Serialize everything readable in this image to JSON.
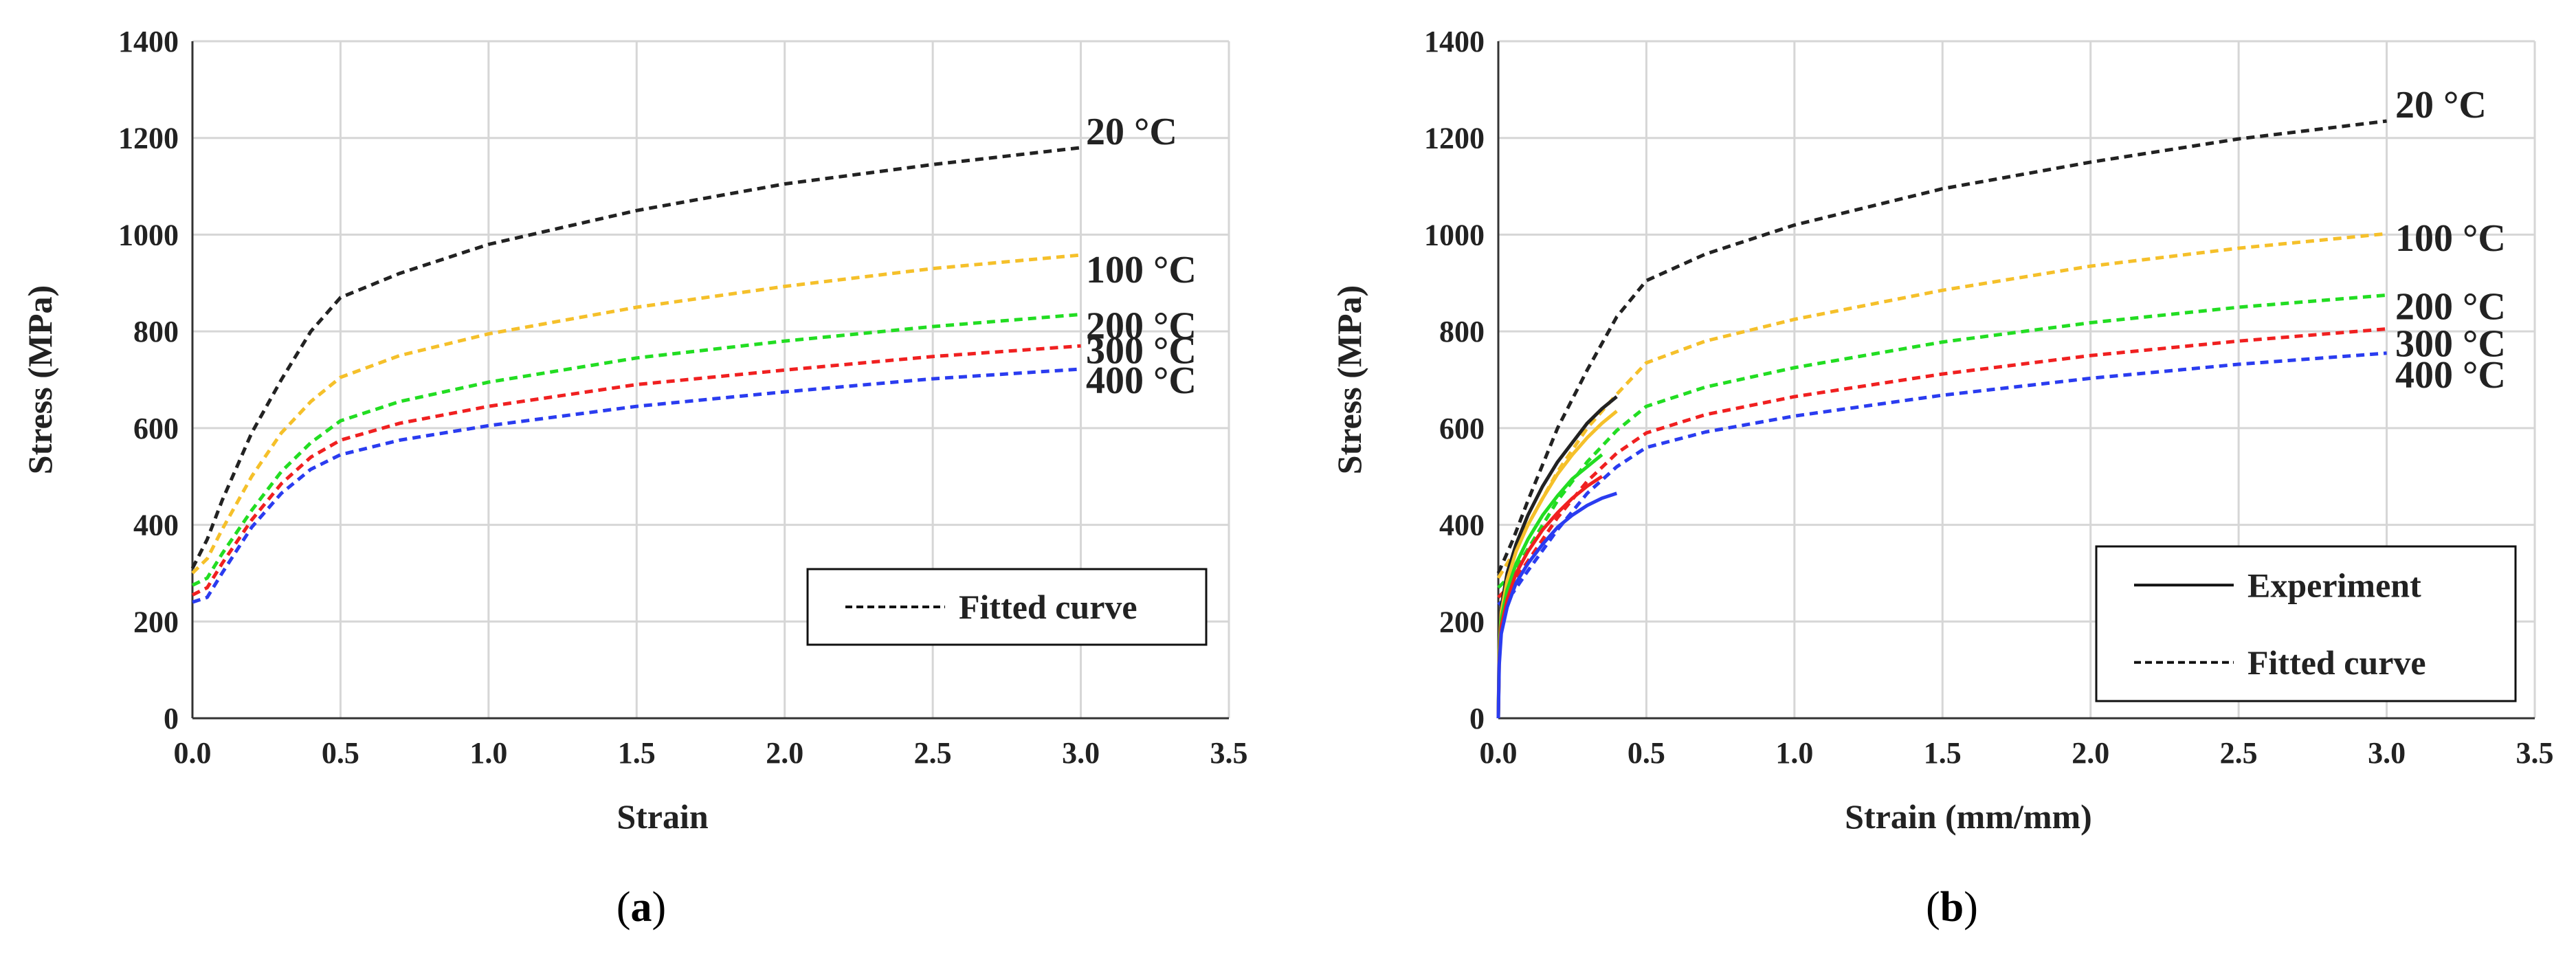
{
  "colors": {
    "20 °C": "#222222",
    "100 °C": "#f5c02a",
    "200 °C": "#22dd22",
    "300 °C": "#f02020",
    "400 °C": "#2a3cf0",
    "grid": "#d6d6d6",
    "axis": "#333333"
  },
  "chart_data": [
    {
      "type": "line",
      "caption": "(a)",
      "xlabel": "Strain",
      "ylabel": "Stress (MPa)",
      "xlim": [
        0,
        3.5
      ],
      "ylim": [
        0,
        1400
      ],
      "xticks": [
        "0.0",
        "0.5",
        "1.0",
        "1.5",
        "2.0",
        "2.5",
        "3.0",
        "3.5"
      ],
      "yticks": [
        "0",
        "200",
        "400",
        "600",
        "800",
        "1000",
        "1200",
        "1400"
      ],
      "legend": {
        "position": "bottom-right",
        "entries": [
          {
            "label": "Fitted curve",
            "style": "dashed"
          }
        ]
      },
      "series": [
        {
          "name": "20 °C",
          "label": "20 °C",
          "style": "dashed",
          "x": [
            0,
            0.05,
            0.1,
            0.2,
            0.3,
            0.4,
            0.5,
            0.7,
            1.0,
            1.5,
            2.0,
            2.5,
            3.0
          ],
          "y": [
            310,
            370,
            450,
            590,
            700,
            800,
            870,
            920,
            980,
            1050,
            1105,
            1145,
            1180
          ]
        },
        {
          "name": "100 °C",
          "label": "100 °C",
          "style": "dashed",
          "x": [
            0,
            0.05,
            0.1,
            0.2,
            0.3,
            0.4,
            0.5,
            0.7,
            1.0,
            1.5,
            2.0,
            2.5,
            3.0
          ],
          "y": [
            300,
            330,
            390,
            500,
            590,
            655,
            705,
            750,
            795,
            850,
            893,
            930,
            958
          ]
        },
        {
          "name": "200 °C",
          "label": "200 °C",
          "style": "dashed",
          "x": [
            0,
            0.05,
            0.1,
            0.2,
            0.3,
            0.4,
            0.5,
            0.7,
            1.0,
            1.5,
            2.0,
            2.5,
            3.0
          ],
          "y": [
            275,
            290,
            340,
            430,
            510,
            570,
            615,
            655,
            695,
            745,
            780,
            810,
            835
          ]
        },
        {
          "name": "300 °C",
          "label": "300 °C",
          "style": "dashed",
          "x": [
            0,
            0.05,
            0.1,
            0.2,
            0.3,
            0.4,
            0.5,
            0.7,
            1.0,
            1.5,
            2.0,
            2.5,
            3.0
          ],
          "y": [
            255,
            270,
            320,
            410,
            485,
            540,
            575,
            610,
            645,
            690,
            720,
            748,
            770
          ]
        },
        {
          "name": "400 °C",
          "label": "400 °C",
          "style": "dashed",
          "x": [
            0,
            0.05,
            0.1,
            0.2,
            0.3,
            0.4,
            0.5,
            0.7,
            1.0,
            1.5,
            2.0,
            2.5,
            3.0
          ],
          "y": [
            240,
            250,
            300,
            395,
            465,
            515,
            545,
            575,
            605,
            645,
            675,
            702,
            722
          ]
        }
      ]
    },
    {
      "type": "line",
      "caption": "(b)",
      "xlabel": "Strain (mm/mm)",
      "ylabel": "Stress (MPa)",
      "xlim": [
        0,
        3.5
      ],
      "ylim": [
        0,
        1400
      ],
      "xticks": [
        "0.0",
        "0.5",
        "1.0",
        "1.5",
        "2.0",
        "2.5",
        "3.0",
        "3.5"
      ],
      "yticks": [
        "0",
        "200",
        "400",
        "600",
        "800",
        "1000",
        "1200",
        "1400"
      ],
      "legend": {
        "position": "bottom-right",
        "entries": [
          {
            "label": "Experiment",
            "style": "solid"
          },
          {
            "label": "Fitted curve",
            "style": "dashed"
          }
        ]
      },
      "series": [
        {
          "name": "20 °C",
          "label": "20 °C",
          "style": "dashed",
          "x": [
            0,
            0.05,
            0.1,
            0.2,
            0.3,
            0.4,
            0.5,
            0.7,
            1.0,
            1.5,
            2.0,
            2.5,
            3.0
          ],
          "y": [
            300,
            370,
            450,
            600,
            720,
            830,
            905,
            960,
            1020,
            1095,
            1150,
            1198,
            1235
          ]
        },
        {
          "name": "100 °C",
          "label": "100 °C",
          "style": "dashed",
          "x": [
            0,
            0.05,
            0.1,
            0.2,
            0.3,
            0.4,
            0.5,
            0.7,
            1.0,
            1.5,
            2.0,
            2.5,
            3.0
          ],
          "y": [
            290,
            340,
            400,
            510,
            600,
            670,
            735,
            780,
            825,
            885,
            935,
            972,
            1002
          ]
        },
        {
          "name": "200 °C",
          "label": "200 °C",
          "style": "dashed",
          "x": [
            0,
            0.05,
            0.1,
            0.2,
            0.3,
            0.4,
            0.5,
            0.7,
            1.0,
            1.5,
            2.0,
            2.5,
            3.0
          ],
          "y": [
            270,
            300,
            350,
            450,
            530,
            595,
            645,
            685,
            725,
            778,
            818,
            850,
            875
          ]
        },
        {
          "name": "300 °C",
          "label": "300 °C",
          "style": "dashed",
          "x": [
            0,
            0.05,
            0.1,
            0.2,
            0.3,
            0.4,
            0.5,
            0.7,
            1.0,
            1.5,
            2.0,
            2.5,
            3.0
          ],
          "y": [
            250,
            280,
            325,
            415,
            490,
            548,
            590,
            628,
            665,
            712,
            750,
            780,
            805
          ]
        },
        {
          "name": "400 °C",
          "label": "400 °C",
          "style": "dashed",
          "x": [
            0,
            0.05,
            0.1,
            0.2,
            0.3,
            0.4,
            0.5,
            0.7,
            1.0,
            1.5,
            2.0,
            2.5,
            3.0
          ],
          "y": [
            235,
            260,
            305,
            390,
            465,
            520,
            560,
            592,
            625,
            668,
            703,
            732,
            755
          ]
        },
        {
          "name": "20 °C experiment",
          "style": "solid",
          "colorKey": "20 °C",
          "x": [
            0,
            0.003,
            0.01,
            0.03,
            0.06,
            0.1,
            0.15,
            0.2,
            0.25,
            0.3,
            0.35,
            0.4
          ],
          "y": [
            0,
            150,
            230,
            300,
            360,
            420,
            480,
            530,
            570,
            610,
            640,
            665
          ]
        },
        {
          "name": "100 °C experiment",
          "style": "solid",
          "colorKey": "100 °C",
          "x": [
            0,
            0.003,
            0.01,
            0.03,
            0.06,
            0.1,
            0.15,
            0.2,
            0.25,
            0.3,
            0.35,
            0.4
          ],
          "y": [
            0,
            140,
            220,
            285,
            345,
            400,
            455,
            505,
            545,
            580,
            610,
            635
          ]
        },
        {
          "name": "200 °C experiment",
          "style": "solid",
          "colorKey": "200 °C",
          "x": [
            0,
            0.003,
            0.01,
            0.03,
            0.06,
            0.1,
            0.15,
            0.2,
            0.25,
            0.3,
            0.35
          ],
          "y": [
            0,
            130,
            205,
            265,
            320,
            370,
            420,
            460,
            495,
            520,
            545
          ]
        },
        {
          "name": "300 °C experiment",
          "style": "solid",
          "colorKey": "300 °C",
          "x": [
            0,
            0.003,
            0.01,
            0.03,
            0.06,
            0.1,
            0.15,
            0.2,
            0.25,
            0.3,
            0.35
          ],
          "y": [
            0,
            120,
            190,
            245,
            300,
            345,
            390,
            425,
            455,
            480,
            500
          ]
        },
        {
          "name": "400 °C experiment",
          "style": "solid",
          "colorKey": "400 °C",
          "x": [
            0,
            0.003,
            0.01,
            0.03,
            0.06,
            0.1,
            0.15,
            0.2,
            0.25,
            0.3,
            0.35,
            0.4
          ],
          "y": [
            0,
            110,
            175,
            230,
            280,
            320,
            360,
            395,
            420,
            440,
            455,
            465
          ]
        }
      ]
    }
  ]
}
